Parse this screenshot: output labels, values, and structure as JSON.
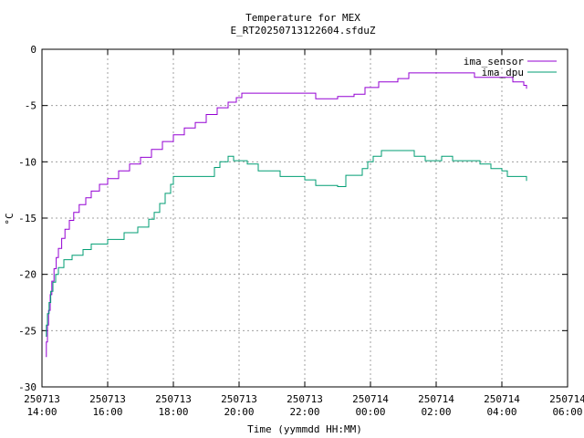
{
  "chart_data": {
    "type": "line",
    "title": "Temperature for MEX",
    "subtitle": "E_RT20250713122604.sfduZ",
    "xlabel": "Time (yymmdd HH:MM)",
    "ylabel": "°C",
    "ylim": [
      -30,
      0
    ],
    "yticks": [
      0,
      -5,
      -10,
      -15,
      -20,
      -25,
      -30
    ],
    "xlim": [
      "2025-07-13 14:00",
      "2025-07-14 06:00"
    ],
    "xticks": [
      {
        "t": "2025-07-13 14:00",
        "date": "250713",
        "time": "14:00"
      },
      {
        "t": "2025-07-13 16:00",
        "date": "250713",
        "time": "16:00"
      },
      {
        "t": "2025-07-13 18:00",
        "date": "250713",
        "time": "18:00"
      },
      {
        "t": "2025-07-13 20:00",
        "date": "250713",
        "time": "20:00"
      },
      {
        "t": "2025-07-13 22:00",
        "date": "250713",
        "time": "22:00"
      },
      {
        "t": "2025-07-14 00:00",
        "date": "250714",
        "time": "00:00"
      },
      {
        "t": "2025-07-14 02:00",
        "date": "250714",
        "time": "02:00"
      },
      {
        "t": "2025-07-14 04:00",
        "date": "250714",
        "time": "04:00"
      },
      {
        "t": "2025-07-14 06:00",
        "date": "250714",
        "time": "06:00"
      }
    ],
    "grid": true,
    "legend": "top-right",
    "series": [
      {
        "name": "ima_sensor",
        "color": "#9400d3",
        "points": [
          [
            "2025-07-13 14:07",
            -27.3
          ],
          [
            "2025-07-13 14:08",
            -26.0
          ],
          [
            "2025-07-13 14:10",
            -24.5
          ],
          [
            "2025-07-13 14:12",
            -23.2
          ],
          [
            "2025-07-13 14:15",
            -21.8
          ],
          [
            "2025-07-13 14:18",
            -20.6
          ],
          [
            "2025-07-13 14:22",
            -19.5
          ],
          [
            "2025-07-13 14:26",
            -18.5
          ],
          [
            "2025-07-13 14:30",
            -17.7
          ],
          [
            "2025-07-13 14:36",
            -16.8
          ],
          [
            "2025-07-13 14:42",
            -16.0
          ],
          [
            "2025-07-13 14:50",
            -15.2
          ],
          [
            "2025-07-13 14:58",
            -14.5
          ],
          [
            "2025-07-13 15:08",
            -13.8
          ],
          [
            "2025-07-13 15:20",
            -13.2
          ],
          [
            "2025-07-13 15:30",
            -12.6
          ],
          [
            "2025-07-13 15:45",
            -12.0
          ],
          [
            "2025-07-13 16:00",
            -11.5
          ],
          [
            "2025-07-13 16:20",
            -10.8
          ],
          [
            "2025-07-13 16:40",
            -10.2
          ],
          [
            "2025-07-13 17:00",
            -9.6
          ],
          [
            "2025-07-13 17:20",
            -8.9
          ],
          [
            "2025-07-13 17:40",
            -8.2
          ],
          [
            "2025-07-13 18:00",
            -7.6
          ],
          [
            "2025-07-13 18:20",
            -7.0
          ],
          [
            "2025-07-13 18:40",
            -6.5
          ],
          [
            "2025-07-13 19:00",
            -5.8
          ],
          [
            "2025-07-13 19:20",
            -5.2
          ],
          [
            "2025-07-13 19:40",
            -4.7
          ],
          [
            "2025-07-13 19:55",
            -4.3
          ],
          [
            "2025-07-13 20:05",
            -3.9
          ],
          [
            "2025-07-13 21:00",
            -3.9
          ],
          [
            "2025-07-13 22:00",
            -3.9
          ],
          [
            "2025-07-13 22:15",
            -3.9
          ],
          [
            "2025-07-13 22:20",
            -4.4
          ],
          [
            "2025-07-13 22:55",
            -4.4
          ],
          [
            "2025-07-13 23:00",
            -4.2
          ],
          [
            "2025-07-13 23:30",
            -4.0
          ],
          [
            "2025-07-13 23:50",
            -3.4
          ],
          [
            "2025-07-14 00:15",
            -2.9
          ],
          [
            "2025-07-14 00:50",
            -2.6
          ],
          [
            "2025-07-14 01:10",
            -2.1
          ],
          [
            "2025-07-14 03:00",
            -2.1
          ],
          [
            "2025-07-14 03:10",
            -2.5
          ],
          [
            "2025-07-14 04:00",
            -2.5
          ],
          [
            "2025-07-14 04:20",
            -2.9
          ],
          [
            "2025-07-14 04:40",
            -3.2
          ],
          [
            "2025-07-14 04:45",
            -3.5
          ]
        ]
      },
      {
        "name": "ima_dpu",
        "color": "#009e73",
        "points": [
          [
            "2025-07-13 14:07",
            -25.5
          ],
          [
            "2025-07-13 14:08",
            -24.5
          ],
          [
            "2025-07-13 14:10",
            -23.5
          ],
          [
            "2025-07-13 14:13",
            -22.5
          ],
          [
            "2025-07-13 14:16",
            -21.5
          ],
          [
            "2025-07-13 14:20",
            -20.7
          ],
          [
            "2025-07-13 14:25",
            -20.0
          ],
          [
            "2025-07-13 14:30",
            -19.4
          ],
          [
            "2025-07-13 14:40",
            -18.7
          ],
          [
            "2025-07-13 14:55",
            -18.3
          ],
          [
            "2025-07-13 15:15",
            -17.8
          ],
          [
            "2025-07-13 15:30",
            -17.3
          ],
          [
            "2025-07-13 16:00",
            -16.9
          ],
          [
            "2025-07-13 16:30",
            -16.3
          ],
          [
            "2025-07-13 16:55",
            -15.8
          ],
          [
            "2025-07-13 17:15",
            -15.1
          ],
          [
            "2025-07-13 17:25",
            -14.5
          ],
          [
            "2025-07-13 17:35",
            -13.7
          ],
          [
            "2025-07-13 17:45",
            -12.8
          ],
          [
            "2025-07-13 17:55",
            -12.0
          ],
          [
            "2025-07-13 18:00",
            -11.3
          ],
          [
            "2025-07-13 19:00",
            -11.3
          ],
          [
            "2025-07-13 19:15",
            -10.5
          ],
          [
            "2025-07-13 19:25",
            -10.0
          ],
          [
            "2025-07-13 19:40",
            -9.5
          ],
          [
            "2025-07-13 19:50",
            -9.9
          ],
          [
            "2025-07-13 20:15",
            -10.2
          ],
          [
            "2025-07-13 20:35",
            -10.8
          ],
          [
            "2025-07-13 21:15",
            -11.3
          ],
          [
            "2025-07-13 22:00",
            -11.6
          ],
          [
            "2025-07-13 22:20",
            -12.1
          ],
          [
            "2025-07-13 23:00",
            -12.2
          ],
          [
            "2025-07-13 23:15",
            -11.2
          ],
          [
            "2025-07-13 23:45",
            -10.6
          ],
          [
            "2025-07-13 23:55",
            -10.0
          ],
          [
            "2025-07-14 00:05",
            -9.5
          ],
          [
            "2025-07-14 00:20",
            -9.0
          ],
          [
            "2025-07-14 01:00",
            -9.0
          ],
          [
            "2025-07-14 01:20",
            -9.5
          ],
          [
            "2025-07-14 01:40",
            -9.9
          ],
          [
            "2025-07-14 02:10",
            -9.5
          ],
          [
            "2025-07-14 02:30",
            -9.9
          ],
          [
            "2025-07-14 03:20",
            -10.2
          ],
          [
            "2025-07-14 03:40",
            -10.6
          ],
          [
            "2025-07-14 04:00",
            -10.8
          ],
          [
            "2025-07-14 04:10",
            -11.3
          ],
          [
            "2025-07-14 04:40",
            -11.3
          ],
          [
            "2025-07-14 04:45",
            -11.7
          ]
        ]
      }
    ]
  }
}
